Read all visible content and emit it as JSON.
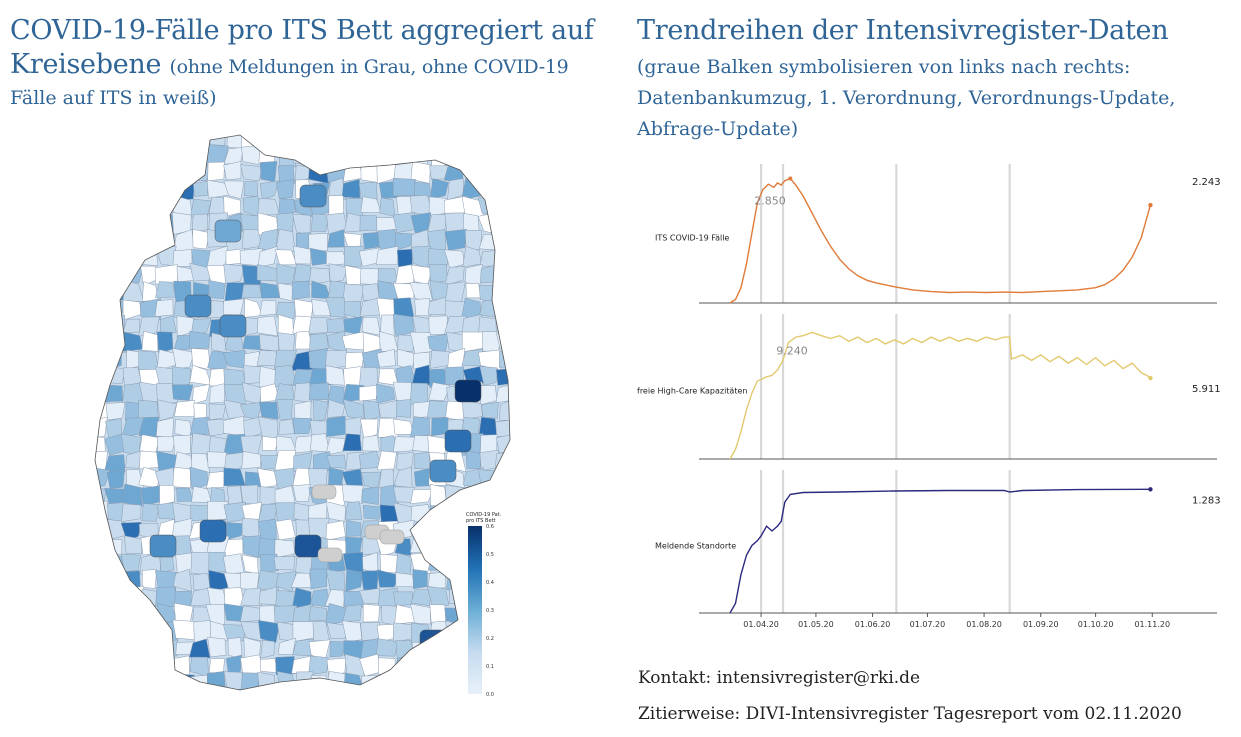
{
  "left_title": {
    "line1": "COVID-19-Fälle pro ITS Bett aggregiert auf",
    "line2_main": "Kreisebene",
    "line2_note": "(ohne Meldungen in Grau, ohne COVID-19",
    "line3": "Fälle auf ITS in weiß)"
  },
  "right_title": {
    "line1": "Trendreihen der Intensivregister-Daten",
    "line2": "(graue Balken symbolisieren von links nach rechts:",
    "line3": "Datenbankumzug, 1. Verordnung, Verordnungs-Update,",
    "line4": "Abfrage-Update)"
  },
  "map_legend": {
    "title_line1": "COVID-19 Pat.",
    "title_line2": "pro ITS Bett",
    "ticks": [
      "0.6",
      "0.5",
      "0.4",
      "0.3",
      "0.2",
      "0.1",
      "0.0"
    ]
  },
  "chart_data": {
    "type": "line",
    "x_ticks": [
      "01.04.20",
      "01.05.20",
      "01.06.20",
      "01.07.20",
      "01.08.20",
      "01.09.20",
      "01.10.20",
      "01.11.20"
    ],
    "x_range_days": [
      0,
      250
    ],
    "grey_bars_days": [
      17,
      29,
      91,
      153
    ],
    "panels": [
      {
        "name": "ITS COVID-19 Fälle",
        "color": "#e07b39",
        "peak_label": "2.850",
        "last_label": "2.243",
        "ylim": [
          0,
          3000
        ],
        "points": [
          [
            0,
            0
          ],
          [
            3,
            80
          ],
          [
            6,
            350
          ],
          [
            9,
            900
          ],
          [
            12,
            1600
          ],
          [
            15,
            2300
          ],
          [
            18,
            2600
          ],
          [
            21,
            2720
          ],
          [
            24,
            2650
          ],
          [
            26,
            2750
          ],
          [
            28,
            2700
          ],
          [
            30,
            2800
          ],
          [
            33,
            2850
          ],
          [
            36,
            2700
          ],
          [
            40,
            2450
          ],
          [
            45,
            2050
          ],
          [
            50,
            1650
          ],
          [
            55,
            1300
          ],
          [
            60,
            1000
          ],
          [
            65,
            780
          ],
          [
            70,
            620
          ],
          [
            75,
            520
          ],
          [
            80,
            460
          ],
          [
            90,
            370
          ],
          [
            100,
            300
          ],
          [
            110,
            260
          ],
          [
            120,
            240
          ],
          [
            130,
            250
          ],
          [
            140,
            240
          ],
          [
            150,
            250
          ],
          [
            160,
            240
          ],
          [
            170,
            260
          ],
          [
            180,
            280
          ],
          [
            190,
            300
          ],
          [
            200,
            350
          ],
          [
            205,
            420
          ],
          [
            210,
            550
          ],
          [
            215,
            750
          ],
          [
            220,
            1050
          ],
          [
            225,
            1500
          ],
          [
            230,
            2243
          ]
        ]
      },
      {
        "name": "freie High-Care Kapazitäten",
        "color": "#e3c96e",
        "peak_label": "9.240",
        "last_label": "5.911",
        "ylim": [
          0,
          10000
        ],
        "points": [
          [
            0,
            0
          ],
          [
            3,
            700
          ],
          [
            6,
            2000
          ],
          [
            9,
            3600
          ],
          [
            12,
            4800
          ],
          [
            15,
            5700
          ],
          [
            17,
            5800
          ],
          [
            20,
            6000
          ],
          [
            23,
            6100
          ],
          [
            26,
            6500
          ],
          [
            29,
            7200
          ],
          [
            32,
            8500
          ],
          [
            36,
            8900
          ],
          [
            40,
            9000
          ],
          [
            45,
            9240
          ],
          [
            50,
            9000
          ],
          [
            55,
            8800
          ],
          [
            60,
            9000
          ],
          [
            65,
            8600
          ],
          [
            70,
            8900
          ],
          [
            75,
            8500
          ],
          [
            80,
            8800
          ],
          [
            85,
            8400
          ],
          [
            90,
            8700
          ],
          [
            95,
            8400
          ],
          [
            100,
            8800
          ],
          [
            105,
            8500
          ],
          [
            110,
            8900
          ],
          [
            115,
            8600
          ],
          [
            120,
            8900
          ],
          [
            125,
            8600
          ],
          [
            130,
            8800
          ],
          [
            135,
            8600
          ],
          [
            140,
            8900
          ],
          [
            145,
            8700
          ],
          [
            150,
            8900
          ],
          [
            153,
            8900
          ],
          [
            154,
            7300
          ],
          [
            160,
            7600
          ],
          [
            165,
            7200
          ],
          [
            170,
            7600
          ],
          [
            175,
            7100
          ],
          [
            180,
            7500
          ],
          [
            185,
            7000
          ],
          [
            190,
            7400
          ],
          [
            195,
            6900
          ],
          [
            200,
            7400
          ],
          [
            205,
            6800
          ],
          [
            210,
            7200
          ],
          [
            215,
            6600
          ],
          [
            220,
            7000
          ],
          [
            225,
            6300
          ],
          [
            228,
            6100
          ],
          [
            230,
            5911
          ]
        ]
      },
      {
        "name": "Meldende Standorte",
        "color": "#2b2a7e",
        "last_label": "1.283",
        "ylim": [
          0,
          1400
        ],
        "points": [
          [
            0,
            0
          ],
          [
            3,
            100
          ],
          [
            6,
            400
          ],
          [
            9,
            600
          ],
          [
            12,
            700
          ],
          [
            15,
            750
          ],
          [
            17,
            800
          ],
          [
            20,
            900
          ],
          [
            23,
            850
          ],
          [
            26,
            900
          ],
          [
            28,
            950
          ],
          [
            30,
            1150
          ],
          [
            33,
            1230
          ],
          [
            40,
            1250
          ],
          [
            60,
            1255
          ],
          [
            90,
            1265
          ],
          [
            120,
            1270
          ],
          [
            150,
            1270
          ],
          [
            153,
            1255
          ],
          [
            160,
            1270
          ],
          [
            190,
            1280
          ],
          [
            230,
            1283
          ]
        ]
      }
    ]
  },
  "footer": {
    "contact": "Kontakt: intensivregister@rki.de",
    "citation": "Zitierweise: DIVI-Intensivregister Tagesreport vom 02.11.2020"
  }
}
